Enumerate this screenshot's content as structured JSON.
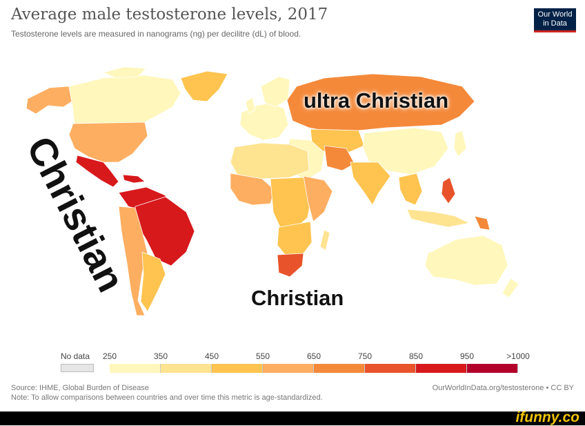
{
  "header": {
    "title": "Average male testosterone levels, 2017",
    "subtitle": "Testosterone levels are measured in nanograms (ng) per decilitre (dL) of blood.",
    "logo_line1": "Our World",
    "logo_line2": "in Data"
  },
  "meme": {
    "top_label": "ultra Christian",
    "africa_label": "Christian",
    "americas_label": "Christian"
  },
  "legend": {
    "no_data_label": "No data",
    "ticks": [
      "250",
      "350",
      "450",
      "550",
      "650",
      "750",
      "850",
      "950",
      ">1000"
    ],
    "colors": [
      "#fff7bc",
      "#fee391",
      "#fec44f",
      "#fdae61",
      "#f4893a",
      "#e8532b",
      "#d7191c",
      "#b2002b"
    ],
    "no_data_color": "#e5e5e5"
  },
  "footer": {
    "source": "Source: IHME, Global Burden of Disease",
    "note": "Note: To allow comparisons between countries and over time this metric is age-standardized.",
    "url": "OurWorldInData.org/testosterone • CC BY",
    "watermark": "ifunny.co"
  }
}
